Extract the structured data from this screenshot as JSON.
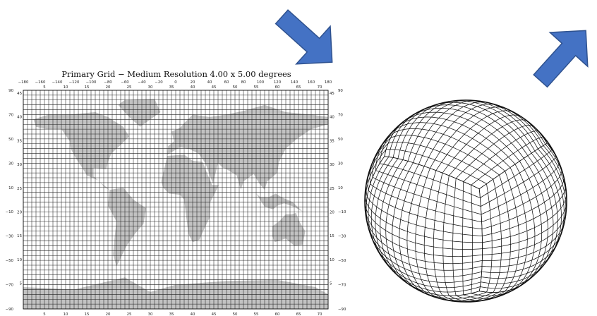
{
  "grid_map": {
    "title": "Primary Grid  −  Medium Resolution  4.00 x 5.00 degrees",
    "lon_tick_labels": [
      "−180",
      "−160",
      "−140",
      "−120",
      "−100",
      "−80",
      "−60",
      "−40",
      "−20",
      "0",
      "20",
      "40",
      "60",
      "80",
      "100",
      "120",
      "140",
      "160",
      "180"
    ],
    "lat_tick_labels": [
      "90",
      "70",
      "50",
      "30",
      "10",
      "−10",
      "−30",
      "−50",
      "−70",
      "−90"
    ],
    "col_index_labels": [
      "5",
      "10",
      "15",
      "20",
      "25",
      "30",
      "35",
      "40",
      "45",
      "50",
      "55",
      "60",
      "65",
      "70"
    ],
    "row_index_labels": [
      "45",
      "40",
      "35",
      "30",
      "25",
      "20",
      "15",
      "10",
      "5"
    ],
    "grid": {
      "lon_step_deg": 5,
      "lat_step_deg": 4,
      "lon_range": [
        -180,
        180
      ],
      "lat_range": [
        -90,
        90
      ]
    },
    "colors": {
      "land": "#c2c2c2",
      "grid_line": "#222222",
      "background": "#ffffff"
    }
  },
  "globe": {
    "description_icon": "cubed-sphere-icon",
    "colors": {
      "line": "#111111",
      "fill": "#ffffff"
    }
  },
  "arrows": {
    "color_fill": "#4472c4",
    "color_stroke": "#2f528f",
    "items": [
      {
        "name": "arrow-down-right-icon",
        "direction": "down-right"
      },
      {
        "name": "arrow-up-right-icon",
        "direction": "up-right"
      }
    ]
  }
}
